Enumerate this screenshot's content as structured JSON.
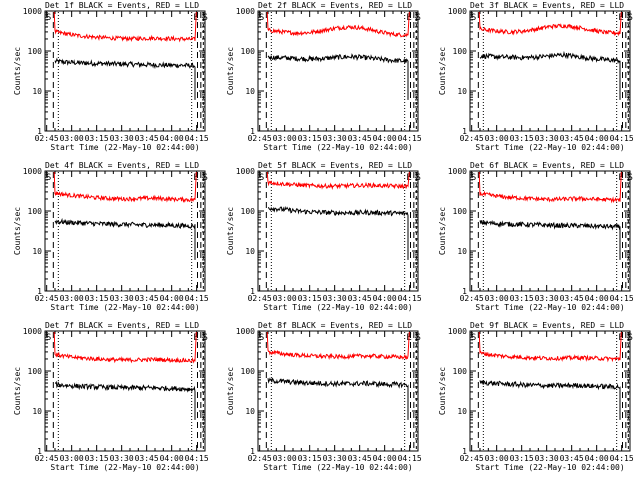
{
  "xticks": [
    "02:45",
    "03:00",
    "03:15",
    "03:30",
    "03:45",
    "04:00",
    "04:15"
  ],
  "xlabel": "Start Time (22-May-10 02:44:00)",
  "yticks": [
    "1",
    "10",
    "100",
    "1000"
  ],
  "ylabel": "Counts/sec",
  "markers": {
    "start": "S",
    "end": "E",
    "final": "S"
  },
  "colors": {
    "events": "#000000",
    "lld": "#ff0000"
  },
  "chart_data": [
    {
      "type": "line",
      "title": "Det 1f BLACK = Events, RED = LLD",
      "xlabel": "Start Time (22-May-10 02:44:00)",
      "ylabel": "Counts/sec",
      "x_unit": "minutes after 02:44",
      "xlim": [
        0,
        96
      ],
      "ylim": [
        1,
        1000
      ],
      "yscale": "log",
      "series_x_range": [
        6,
        90
      ],
      "series": [
        {
          "color": "#000000",
          "level": 50,
          "values": [
            55,
            52,
            50,
            49,
            48,
            47,
            46,
            45,
            44,
            44,
            43
          ]
        },
        {
          "color": "#ff0000",
          "level": 230,
          "values": [
            300,
            260,
            235,
            220,
            210,
            205,
            205,
            210,
            205,
            200,
            195
          ]
        }
      ]
    },
    {
      "type": "line",
      "title": "Det 2f BLACK = Events, RED = LLD",
      "xlabel": "Start Time (22-May-10 02:44:00)",
      "ylabel": "Counts/sec",
      "x_unit": "minutes after 02:44",
      "xlim": [
        0,
        96
      ],
      "ylim": [
        1,
        1000
      ],
      "yscale": "log",
      "series_x_range": [
        6,
        90
      ],
      "series": [
        {
          "color": "#000000",
          "level": 65,
          "values": [
            70,
            68,
            65,
            63,
            65,
            70,
            72,
            68,
            62,
            58,
            55
          ]
        },
        {
          "color": "#ff0000",
          "level": 300,
          "values": [
            330,
            300,
            280,
            290,
            330,
            380,
            400,
            360,
            300,
            260,
            250
          ]
        }
      ]
    },
    {
      "type": "line",
      "title": "Det 3f BLACK = Events, RED = LLD",
      "xlabel": "Start Time (22-May-10 02:44:00)",
      "ylabel": "Counts/sec",
      "x_unit": "minutes after 02:44",
      "xlim": [
        0,
        96
      ],
      "ylim": [
        1,
        1000
      ],
      "yscale": "log",
      "series_x_range": [
        6,
        90
      ],
      "series": [
        {
          "color": "#000000",
          "level": 70,
          "values": [
            75,
            72,
            70,
            68,
            70,
            76,
            80,
            72,
            65,
            60,
            58
          ]
        },
        {
          "color": "#ff0000",
          "level": 320,
          "values": [
            350,
            320,
            300,
            310,
            350,
            410,
            430,
            390,
            330,
            290,
            280
          ]
        }
      ]
    },
    {
      "type": "line",
      "title": "Det 4f BLACK = Events, RED = LLD",
      "xlabel": "Start Time (22-May-10 02:44:00)",
      "ylabel": "Counts/sec",
      "x_unit": "minutes after 02:44",
      "xlim": [
        0,
        96
      ],
      "ylim": [
        1,
        1000
      ],
      "yscale": "log",
      "series_x_range": [
        6,
        90
      ],
      "series": [
        {
          "color": "#000000",
          "level": 48,
          "values": [
            55,
            52,
            50,
            48,
            47,
            46,
            45,
            45,
            44,
            43,
            42
          ]
        },
        {
          "color": "#ff0000",
          "level": 220,
          "values": [
            280,
            250,
            230,
            215,
            205,
            200,
            205,
            210,
            200,
            195,
            190
          ]
        }
      ]
    },
    {
      "type": "line",
      "title": "Det 5f BLACK = Events, RED = LLD",
      "xlabel": "Start Time (22-May-10 02:44:00)",
      "ylabel": "Counts/sec",
      "x_unit": "minutes after 02:44",
      "xlim": [
        0,
        96
      ],
      "ylim": [
        1,
        1000
      ],
      "yscale": "log",
      "series_x_range": [
        6,
        90
      ],
      "series": [
        {
          "color": "#000000",
          "level": 95,
          "values": [
            120,
            110,
            100,
            95,
            92,
            90,
            90,
            92,
            90,
            88,
            86
          ]
        },
        {
          "color": "#ff0000",
          "level": 430,
          "values": [
            520,
            480,
            450,
            430,
            420,
            420,
            430,
            440,
            430,
            420,
            410
          ]
        }
      ]
    },
    {
      "type": "line",
      "title": "Det 6f BLACK = Events, RED = LLD",
      "xlabel": "Start Time (22-May-10 02:44:00)",
      "ylabel": "Counts/sec",
      "x_unit": "minutes after 02:44",
      "xlim": [
        0,
        96
      ],
      "ylim": [
        1,
        1000
      ],
      "yscale": "log",
      "series_x_range": [
        6,
        90
      ],
      "series": [
        {
          "color": "#000000",
          "level": 45,
          "values": [
            52,
            49,
            47,
            46,
            45,
            44,
            43,
            43,
            42,
            41,
            40
          ]
        },
        {
          "color": "#ff0000",
          "level": 210,
          "values": [
            270,
            240,
            220,
            210,
            200,
            195,
            198,
            205,
            198,
            192,
            188
          ]
        }
      ]
    },
    {
      "type": "line",
      "title": "Det 7f BLACK = Events, RED = LLD",
      "xlabel": "Start Time (22-May-10 02:44:00)",
      "ylabel": "Counts/sec",
      "x_unit": "minutes after 02:44",
      "xlim": [
        0,
        96
      ],
      "ylim": [
        1,
        1000
      ],
      "yscale": "log",
      "series_x_range": [
        6,
        90
      ],
      "series": [
        {
          "color": "#000000",
          "level": 40,
          "values": [
            46,
            43,
            41,
            40,
            39,
            38,
            38,
            38,
            37,
            36,
            35
          ]
        },
        {
          "color": "#ff0000",
          "level": 200,
          "values": [
            260,
            225,
            210,
            200,
            192,
            188,
            190,
            195,
            190,
            185,
            180
          ]
        }
      ]
    },
    {
      "type": "line",
      "title": "Det 8f BLACK = Events, RED = LLD",
      "xlabel": "Start Time (22-May-10 02:44:00)",
      "ylabel": "Counts/sec",
      "x_unit": "minutes after 02:44",
      "xlim": [
        0,
        96
      ],
      "ylim": [
        1,
        1000
      ],
      "yscale": "log",
      "series_x_range": [
        6,
        90
      ],
      "series": [
        {
          "color": "#000000",
          "level": 50,
          "values": [
            58,
            55,
            52,
            50,
            49,
            48,
            48,
            49,
            47,
            46,
            45
          ]
        },
        {
          "color": "#ff0000",
          "level": 240,
          "values": [
            300,
            270,
            250,
            240,
            232,
            228,
            232,
            240,
            232,
            225,
            220
          ]
        }
      ]
    },
    {
      "type": "line",
      "title": "Det 9f BLACK = Events, RED = LLD",
      "xlabel": "Start Time (22-May-10 02:44:00)",
      "ylabel": "Counts/sec",
      "x_unit": "minutes after 02:44",
      "xlim": [
        0,
        96
      ],
      "ylim": [
        1,
        1000
      ],
      "yscale": "log",
      "series_x_range": [
        6,
        90
      ],
      "series": [
        {
          "color": "#000000",
          "level": 45,
          "values": [
            52,
            49,
            47,
            45,
            44,
            43,
            43,
            44,
            42,
            41,
            40
          ]
        },
        {
          "color": "#ff0000",
          "level": 220,
          "values": [
            280,
            248,
            230,
            220,
            212,
            208,
            210,
            216,
            210,
            204,
            200
          ]
        }
      ]
    }
  ]
}
